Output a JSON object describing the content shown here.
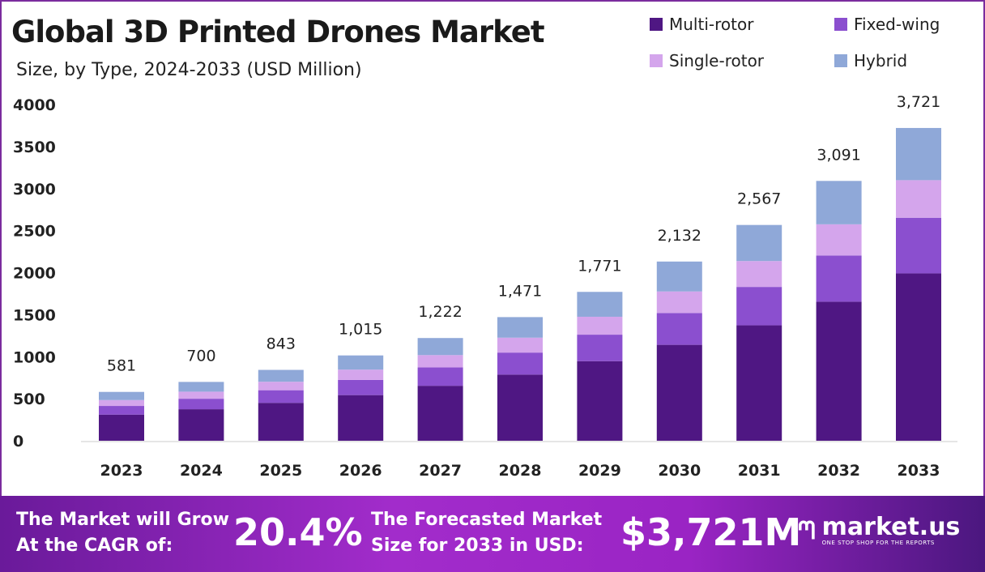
{
  "chart_data": {
    "type": "bar",
    "stacked": true,
    "title": "Global 3D Printed Drones Market",
    "subtitle": "Size, by Type, 2024-2033 (USD Million)",
    "categories": [
      "2023",
      "2024",
      "2025",
      "2026",
      "2027",
      "2028",
      "2029",
      "2030",
      "2031",
      "2032",
      "2033"
    ],
    "totals_labels": [
      "581",
      "700",
      "843",
      "1,015",
      "1,222",
      "1,471",
      "1,771",
      "2,132",
      "2,567",
      "3,091",
      "3,721"
    ],
    "totals": [
      581,
      700,
      843,
      1015,
      1222,
      1471,
      1771,
      2132,
      2567,
      3091,
      3721
    ],
    "series": [
      {
        "name": "Multi-rotor",
        "color": "#4f1783",
        "values": [
          311,
          375,
          451,
          543,
          654,
          787,
          947,
          1141,
          1373,
          1654,
          1991
        ]
      },
      {
        "name": "Fixed-wing",
        "color": "#8b4fcf",
        "values": [
          103,
          125,
          150,
          181,
          218,
          262,
          315,
          379,
          457,
          550,
          662
        ]
      },
      {
        "name": "Single-rotor",
        "color": "#d4a5ec",
        "values": [
          70,
          84,
          101,
          122,
          147,
          177,
          213,
          256,
          308,
          371,
          447
        ]
      },
      {
        "name": "Hybrid",
        "color": "#8fa8d8",
        "values": [
          97,
          116,
          141,
          169,
          203,
          245,
          296,
          356,
          429,
          516,
          621
        ]
      }
    ],
    "ylim": [
      0,
      4000
    ],
    "yticks": [
      0,
      500,
      1000,
      1500,
      2000,
      2500,
      3000,
      3500,
      4000
    ],
    "grid": false,
    "legend_position": "top-right"
  },
  "banner": {
    "cagr_label_1": "The Market will Grow",
    "cagr_label_2": "At the CAGR of:",
    "cagr_value": "20.4%",
    "forecast_label_1": "The Forecasted Market",
    "forecast_label_2": "Size for 2033 in USD:",
    "forecast_value": "$3,721M",
    "logo_text": "market.us",
    "logo_tagline": "ONE STOP SHOP FOR THE REPORTS"
  }
}
